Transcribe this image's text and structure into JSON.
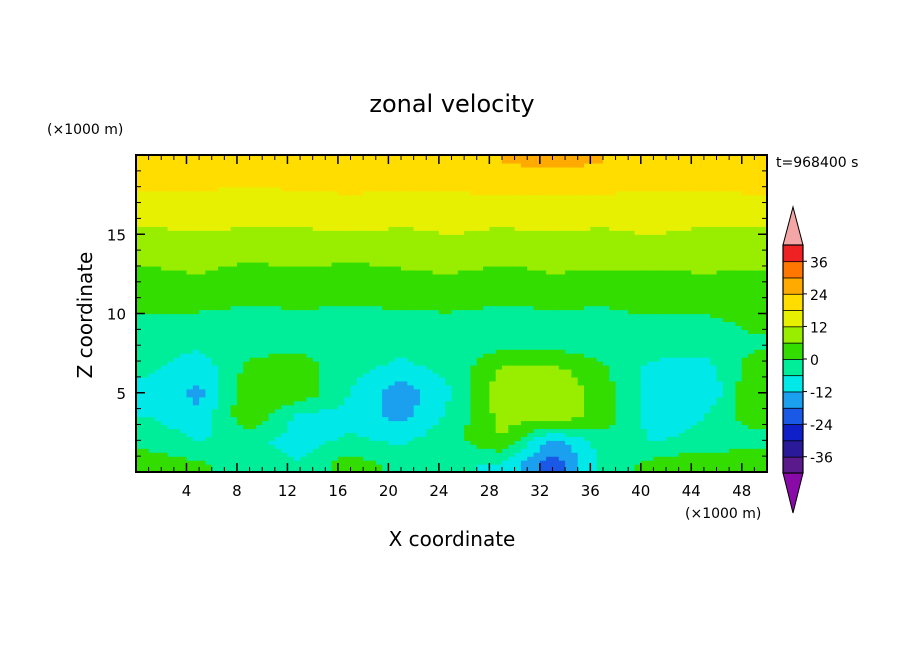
{
  "chart_data": {
    "type": "heatmap",
    "title": "zonal velocity",
    "xlabel": "X coordinate",
    "ylabel": "Z coordinate",
    "x_unit_label": "(×1000 m)",
    "y_unit_label": "(×1000 m)",
    "time_label": "t=968400 s",
    "xlim": [
      0,
      50
    ],
    "ylim": [
      0,
      20
    ],
    "x_ticks": [
      4,
      8,
      12,
      16,
      20,
      24,
      28,
      32,
      36,
      40,
      44,
      48
    ],
    "y_ticks": [
      5,
      10,
      15
    ],
    "colorbar": {
      "levels": [
        -42,
        -36,
        -30,
        -24,
        -18,
        -12,
        -6,
        0,
        6,
        12,
        18,
        24,
        30,
        36,
        42
      ],
      "tick_labels": [
        "36",
        "24",
        "12",
        "0",
        "-12",
        "-24",
        "-36"
      ],
      "tick_values": [
        36,
        24,
        12,
        0,
        -12,
        -24,
        -36
      ],
      "band_colors": [
        "#5a1a8c",
        "#2a1a9a",
        "#1020c8",
        "#1a58e6",
        "#1aa0ee",
        "#00e8e8",
        "#00ee9a",
        "#33dd00",
        "#99ee00",
        "#e6f000",
        "#ffdd00",
        "#ffaa00",
        "#ff7700",
        "#ee2222"
      ],
      "under_color": "#8a0aa8",
      "over_color": "#f4a6a6"
    },
    "z_grid": {
      "x": [
        1,
        5,
        9,
        13,
        17,
        21,
        25,
        29,
        33,
        37,
        41,
        45,
        49
      ],
      "z": [
        0.5,
        2,
        3.5,
        5,
        6.5,
        8,
        9.5,
        11,
        12.5,
        14,
        15.5,
        17,
        18.5,
        19.5
      ],
      "values": [
        [
          3,
          1,
          -3,
          -6,
          4,
          -3,
          -5,
          -7,
          -22,
          -4,
          2,
          6,
          5
        ],
        [
          -2,
          -6,
          -5,
          -8,
          -5,
          -7,
          -2,
          6,
          -14,
          -3,
          -6,
          -5,
          -3
        ],
        [
          -6,
          -10,
          5,
          -8,
          -8,
          -14,
          -4,
          8,
          10,
          4,
          -9,
          -6,
          4
        ],
        [
          -8,
          -14,
          6,
          4,
          -6,
          -16,
          -6,
          10,
          12,
          3,
          -10,
          -12,
          6
        ],
        [
          -5,
          -10,
          2,
          3,
          -4,
          -8,
          -4,
          7,
          8,
          1,
          -8,
          -10,
          4
        ],
        [
          -3,
          -5,
          -2,
          -1,
          -3,
          -4,
          -3,
          -2,
          -2,
          -3,
          -3,
          -2,
          -1
        ],
        [
          -1,
          -2,
          -3,
          -2,
          -3,
          -2,
          -2,
          -3,
          -2,
          -2,
          -1,
          -1,
          1
        ],
        [
          2,
          3,
          1,
          2,
          1,
          2,
          3,
          1,
          2,
          1,
          3,
          2,
          3
        ],
        [
          5,
          6,
          4,
          5,
          3,
          5,
          6,
          4,
          6,
          5,
          5,
          6,
          5
        ],
        [
          8,
          9,
          8,
          9,
          9,
          9,
          10,
          9,
          9,
          10,
          10,
          9,
          9
        ],
        [
          12,
          13,
          12,
          12,
          13,
          12,
          13,
          12,
          13,
          12,
          13,
          12,
          12
        ],
        [
          16,
          16,
          15,
          16,
          16,
          16,
          16,
          17,
          16,
          16,
          16,
          16,
          16
        ],
        [
          20,
          20,
          19,
          20,
          21,
          20,
          20,
          21,
          22,
          21,
          20,
          20,
          21
        ],
        [
          22,
          23,
          21,
          22,
          24,
          23,
          23,
          24,
          25,
          24,
          23,
          22,
          23
        ]
      ]
    }
  }
}
